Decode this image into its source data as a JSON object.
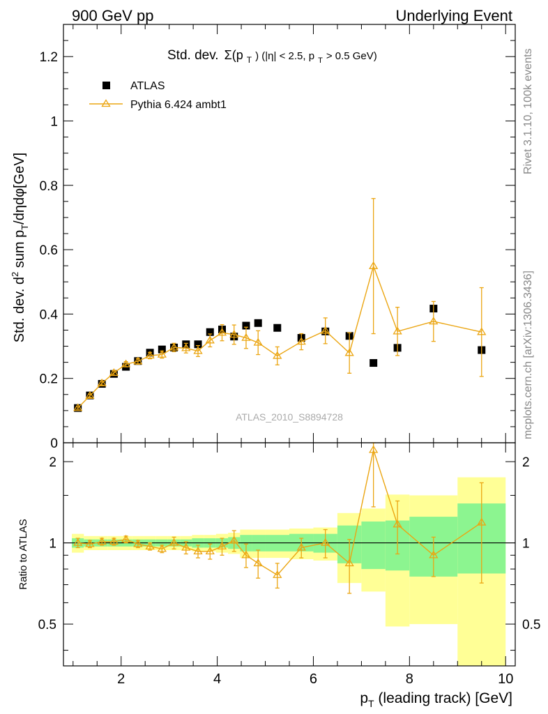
{
  "header": {
    "left": "900 GeV pp",
    "right": "Underlying Event"
  },
  "side_labels": {
    "rivet": "Rivet 3.1.10,  100k events",
    "mcplots": "mcplots.cern.ch [arXiv:1306.3436]"
  },
  "chart_data": [
    {
      "type": "scatter",
      "title_main": "Std. dev.",
      "title_sigma": "Σ(p",
      "title_sub": "T",
      "title_rest": ") (|η| < 2.5, p",
      "title_sub2": "T",
      "title_end": " > 0.5 GeV)",
      "watermark": "ATLAS_2010_S8894728",
      "ylabel": "Std. dev. d² sum p_T/dηdφ[GeV]",
      "ylim": [
        0,
        1.3
      ],
      "xlim": [
        0.8,
        10.2
      ],
      "yticks": [
        0,
        0.2,
        0.4,
        0.6,
        0.8,
        1,
        1.2
      ],
      "yticklabels": [
        "0",
        "0.2",
        "0.4",
        "0.6",
        "0.8",
        "1",
        "1.2"
      ],
      "legend_position": "top-left",
      "series": [
        {
          "name": "ATLAS",
          "color": "#000000",
          "marker": "square",
          "x": [
            1.1,
            1.35,
            1.6,
            1.85,
            2.1,
            2.35,
            2.6,
            2.85,
            3.1,
            3.35,
            3.6,
            3.85,
            4.1,
            4.35,
            4.6,
            4.85,
            5.25,
            5.75,
            6.25,
            6.75,
            7.25,
            7.75,
            8.5,
            9.5
          ],
          "y": [
            0.108,
            0.147,
            0.183,
            0.214,
            0.236,
            0.254,
            0.28,
            0.29,
            0.296,
            0.306,
            0.306,
            0.344,
            0.352,
            0.33,
            0.364,
            0.372,
            0.357,
            0.326,
            0.346,
            0.332,
            0.248,
            0.295,
            0.417,
            0.288
          ]
        },
        {
          "name": "Pythia 6.424 ambt1",
          "color": "#eba511",
          "marker": "triangle",
          "x": [
            1.1,
            1.35,
            1.6,
            1.85,
            2.1,
            2.35,
            2.6,
            2.85,
            3.1,
            3.35,
            3.6,
            3.85,
            4.1,
            4.35,
            4.6,
            4.85,
            5.25,
            5.75,
            6.25,
            6.75,
            7.25,
            7.75,
            8.5,
            9.5
          ],
          "y": [
            0.108,
            0.146,
            0.185,
            0.217,
            0.244,
            0.253,
            0.271,
            0.274,
            0.296,
            0.294,
            0.285,
            0.318,
            0.342,
            0.336,
            0.326,
            0.311,
            0.27,
            0.314,
            0.348,
            0.279,
            0.549,
            0.346,
            0.377,
            0.344
          ],
          "err": [
            0.004,
            0.005,
            0.006,
            0.007,
            0.008,
            0.009,
            0.01,
            0.011,
            0.013,
            0.015,
            0.017,
            0.02,
            0.025,
            0.03,
            0.033,
            0.037,
            0.028,
            0.025,
            0.04,
            0.063,
            0.21,
            0.075,
            0.062,
            0.138
          ]
        }
      ]
    },
    {
      "type": "scatter",
      "ylabel": "Ratio to ATLAS",
      "xlabel": "p_T (leading track) [GeV]",
      "xlim": [
        0.8,
        10.2
      ],
      "ylim": [
        0.35,
        2.35
      ],
      "log_y": true,
      "yticks": [
        0.5,
        1,
        2
      ],
      "yticklabels": [
        "0.5",
        "1",
        "2"
      ],
      "xticks": [
        2,
        4,
        6,
        8,
        10
      ],
      "xticklabels": [
        "2",
        "4",
        "6",
        "8",
        "10"
      ],
      "reference_line": 1,
      "bands": {
        "edges": [
          0.975,
          1.225,
          1.475,
          1.725,
          1.975,
          2.225,
          2.475,
          2.725,
          2.975,
          3.225,
          3.475,
          3.725,
          3.975,
          4.225,
          4.475,
          4.725,
          5.0,
          5.5,
          6.0,
          6.5,
          7.0,
          7.5,
          8.0,
          9.0,
          10.0
        ],
        "inner_lo": [
          0.96,
          0.97,
          0.97,
          0.97,
          0.97,
          0.97,
          0.97,
          0.97,
          0.97,
          0.97,
          0.96,
          0.96,
          0.96,
          0.95,
          0.93,
          0.93,
          0.93,
          0.93,
          0.92,
          0.84,
          0.8,
          0.79,
          0.75,
          0.77
        ],
        "inner_hi": [
          1.04,
          1.03,
          1.03,
          1.03,
          1.03,
          1.03,
          1.03,
          1.03,
          1.03,
          1.03,
          1.04,
          1.04,
          1.04,
          1.05,
          1.07,
          1.07,
          1.07,
          1.08,
          1.08,
          1.16,
          1.2,
          1.21,
          1.25,
          1.4
        ],
        "outer_lo": [
          0.92,
          0.94,
          0.94,
          0.94,
          0.94,
          0.94,
          0.94,
          0.94,
          0.94,
          0.94,
          0.93,
          0.93,
          0.92,
          0.91,
          0.88,
          0.88,
          0.88,
          0.87,
          0.86,
          0.71,
          0.66,
          0.49,
          0.5,
          0.32
        ],
        "outer_hi": [
          1.08,
          1.06,
          1.06,
          1.06,
          1.06,
          1.06,
          1.06,
          1.06,
          1.06,
          1.06,
          1.07,
          1.07,
          1.08,
          1.09,
          1.12,
          1.12,
          1.12,
          1.13,
          1.14,
          1.29,
          1.34,
          1.51,
          1.5,
          1.75
        ],
        "inner_color": "#8cf590",
        "outer_color": "#ffff96"
      },
      "series": [
        {
          "name": "Pythia 6.424 ambt1",
          "color": "#eba511",
          "marker": "triangle",
          "x": [
            1.1,
            1.35,
            1.6,
            1.85,
            2.1,
            2.35,
            2.6,
            2.85,
            3.1,
            3.35,
            3.6,
            3.85,
            4.1,
            4.35,
            4.6,
            4.85,
            5.25,
            5.75,
            6.25,
            6.75,
            7.25,
            7.75,
            8.5,
            9.5
          ],
          "y": [
            1.0,
            0.99,
            1.01,
            1.01,
            1.03,
            0.99,
            0.97,
            0.95,
            1.0,
            0.96,
            0.93,
            0.93,
            0.97,
            1.02,
            0.9,
            0.84,
            0.76,
            0.96,
            1.0,
            0.84,
            2.21,
            1.17,
            0.9,
            1.19
          ],
          "err": [
            0.04,
            0.03,
            0.03,
            0.03,
            0.03,
            0.03,
            0.03,
            0.03,
            0.05,
            0.05,
            0.05,
            0.06,
            0.07,
            0.09,
            0.09,
            0.1,
            0.08,
            0.08,
            0.12,
            0.19,
            0.85,
            0.26,
            0.15,
            0.48
          ]
        }
      ]
    }
  ]
}
